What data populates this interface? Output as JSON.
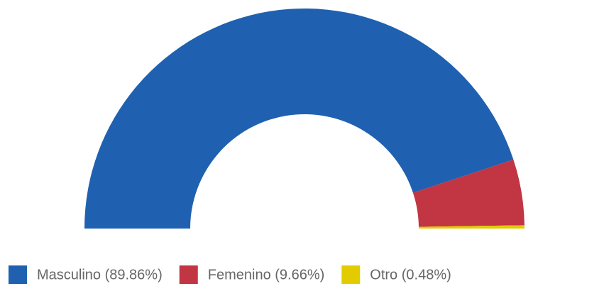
{
  "chart_data": {
    "type": "semidonut",
    "categories": [
      "Masculino (89.86%)",
      "Femenino (9.66%)",
      "Otro (0.48%)"
    ],
    "values": [
      89.86,
      9.66,
      0.48
    ],
    "colors": [
      "#1f61b0",
      "#c23542",
      "#e2cc00"
    ]
  }
}
